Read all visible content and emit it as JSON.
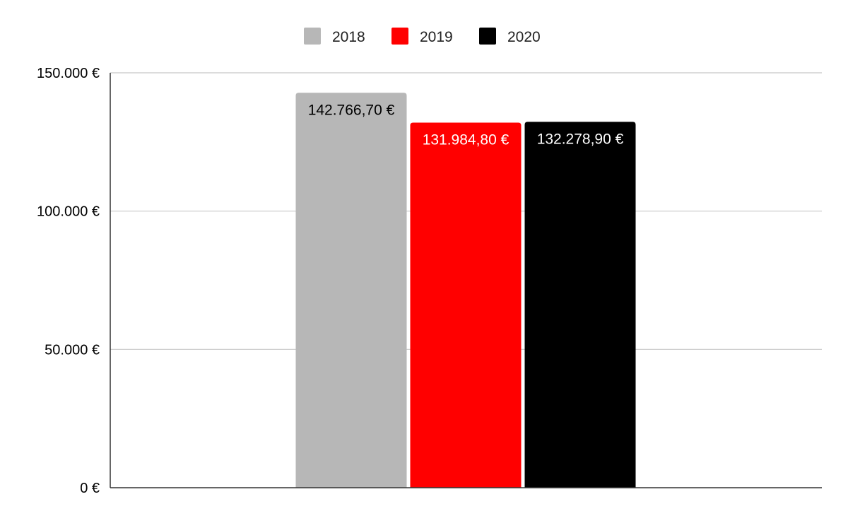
{
  "chart_data": {
    "type": "bar",
    "categories": [
      ""
    ],
    "series": [
      {
        "name": "2018",
        "color": "#b7b7b7",
        "label_color": "#000000",
        "values": [
          142766.7
        ],
        "value_labels": [
          "142.766,70 €"
        ]
      },
      {
        "name": "2019",
        "color": "#ff0000",
        "label_color": "#ffffff",
        "values": [
          131984.8
        ],
        "value_labels": [
          "131.984,80 €"
        ]
      },
      {
        "name": "2020",
        "color": "#000000",
        "label_color": "#ffffff",
        "values": [
          132278.9
        ],
        "value_labels": [
          "132.278,90 €"
        ]
      }
    ],
    "ylim": [
      0,
      150000
    ],
    "yticks": [
      0,
      50000,
      100000,
      150000
    ],
    "ytick_labels": [
      "0 €",
      "50.000 €",
      "100.000 €",
      "150.000 €"
    ],
    "title": "",
    "xlabel": "",
    "ylabel": "",
    "grid": true,
    "legend_position": "top-center"
  }
}
